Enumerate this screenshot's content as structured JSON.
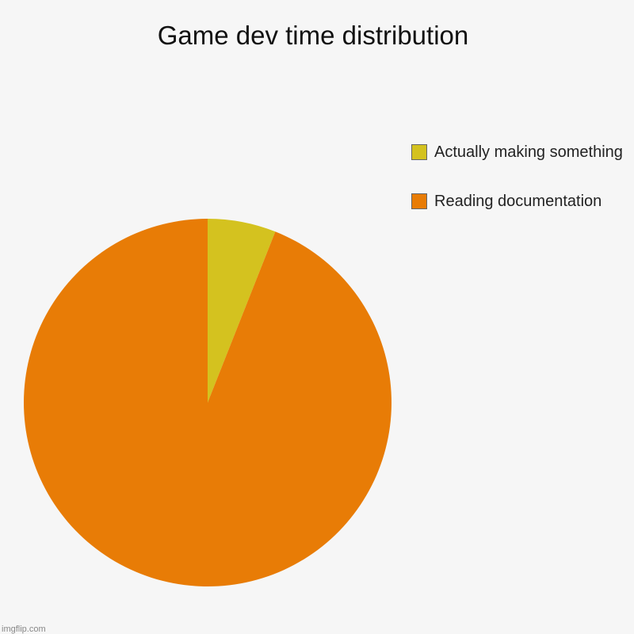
{
  "chart_data": {
    "type": "pie",
    "title": "Game dev time distribution",
    "categories": [
      "Actually making something",
      "Reading documentation"
    ],
    "values": [
      6,
      94
    ],
    "colors": [
      "#d4c21f",
      "#e87c06"
    ],
    "legend": "top-right",
    "watermark": "imgflip.com"
  }
}
